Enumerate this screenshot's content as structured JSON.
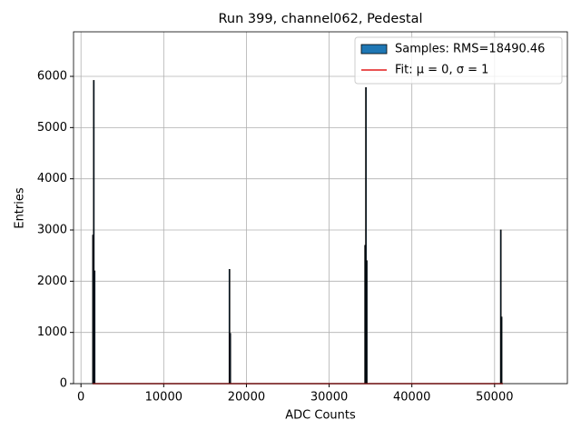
{
  "chart_data": {
    "type": "histogram",
    "title": "Run 399, channel062, Pedestal",
    "xlabel": "ADC Counts",
    "ylabel": "Entries",
    "bins": [
      1400,
      1500,
      1600,
      1700,
      17900,
      18000,
      18100,
      18200,
      34300,
      34400,
      34500,
      34600,
      50700,
      50800,
      50900,
      51000
    ],
    "counts": [
      2900,
      5920,
      2200,
      0,
      2230,
      980,
      0,
      0,
      2700,
      5780,
      2400,
      0,
      3000,
      1300,
      0
    ],
    "name": "Samples: RMS=18490.46",
    "color": "#1f77b4",
    "edgecolor": "#000000",
    "fit": {
      "name": "Fit: μ = 0, σ = 1",
      "color": "#e41a1c",
      "x": [
        1400,
        51000
      ],
      "values": [
        0,
        0
      ]
    },
    "xlim": [
      -900,
      58800
    ],
    "ylim": [
      0,
      6870
    ],
    "xticks": [
      0,
      10000,
      20000,
      30000,
      40000,
      50000
    ],
    "yticks": [
      0,
      1000,
      2000,
      3000,
      4000,
      5000,
      6000
    ],
    "grid": true,
    "legend": "upper right"
  }
}
